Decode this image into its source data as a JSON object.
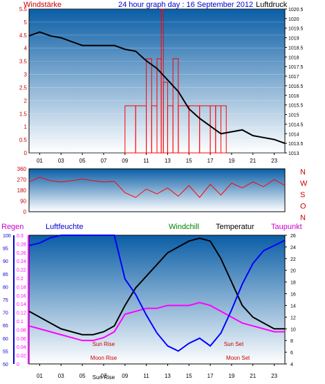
{
  "header": {
    "windstarke_label": "Windstärke",
    "title": "24 hour graph day : 16 September 2012",
    "luftdruck_label": "Luftdruck"
  },
  "lower_header": {
    "regen_label": "Regen",
    "luftfeuchte_label": "Luftfeuchte",
    "windchill_label": "Windchill",
    "temperatur_label": "Temperatur",
    "taupunkt_label": "Taupunkt"
  },
  "colors": {
    "windspeed": "#ff0000",
    "pressure": "#000000",
    "direction": "#ff0000",
    "humidity": "#0000ff",
    "temperature": "#000000",
    "dewpoint": "#ff00ff",
    "rain": "#ff00ff",
    "windchill": "#008000",
    "axis_red": "#cc0000",
    "axis_blue": "#0000cc"
  },
  "chart_data": [
    {
      "type": "line",
      "panel": "wind-pressure",
      "title": "24 hour graph day : 16 September 2012",
      "x_ticks": [
        "01",
        "03",
        "05",
        "07",
        "09",
        "11",
        "13",
        "15",
        "17",
        "19",
        "21",
        "23"
      ],
      "left_axis": {
        "label": "Windstärke",
        "ticks": [
          "0",
          "0.5",
          "1",
          "1.5",
          "2",
          "2.5",
          "3",
          "3.5",
          "4",
          "4.5",
          "5",
          "5.5"
        ],
        "range": [
          0,
          5.5
        ]
      },
      "right_axis": {
        "label": "Luftdruck",
        "ticks": [
          "1013",
          "1013.5",
          "1014",
          "1014.5",
          "1015",
          "1015.5",
          "1016",
          "1016.5",
          "1017",
          "1017.5",
          "1018",
          "1018.5",
          "1019",
          "1019.5",
          "1020",
          "1020.5"
        ],
        "range": [
          1013,
          1020.5
        ]
      },
      "series": [
        {
          "axis": "right",
          "x": [
            0,
            1,
            2,
            3,
            4,
            5,
            6,
            7,
            8,
            9,
            10,
            11,
            12,
            13,
            14,
            15,
            16,
            17,
            18,
            19,
            20,
            21,
            22,
            23,
            24
          ],
          "values": [
            1019.1,
            1019.3,
            1019.1,
            1019.0,
            1018.8,
            1018.6,
            1018.6,
            1018.6,
            1018.6,
            1018.4,
            1018.3,
            1017.8,
            1017.4,
            1016.8,
            1016.2,
            1015.3,
            1014.8,
            1014.4,
            1014.0,
            1014.1,
            1014.2,
            1013.9,
            1013.8,
            1013.7,
            1013.5
          ]
        },
        {
          "axis": "left",
          "x": [
            9.0,
            10.0,
            11.0,
            11.5,
            12.0,
            12.4,
            12.6,
            13.0,
            13.5,
            14.0,
            15.0,
            16.0,
            17.0,
            17.5,
            18.0,
            18.5
          ],
          "values": [
            1.8,
            1.8,
            3.6,
            1.8,
            3.6,
            5.5,
            2.7,
            1.8,
            3.6,
            1.8,
            1.8,
            1.8,
            1.8,
            1.8,
            1.8,
            0
          ]
        }
      ]
    },
    {
      "type": "line",
      "panel": "wind-direction",
      "left_axis": {
        "ticks": [
          "0",
          "90",
          "180",
          "270",
          "360"
        ],
        "range": [
          0,
          360
        ]
      },
      "right_axis": {
        "ticks": [
          "N",
          "W",
          "S",
          "O",
          "N"
        ]
      },
      "series": [
        {
          "x": [
            0,
            1,
            2,
            3,
            4,
            5,
            6,
            7,
            8,
            9,
            10,
            11,
            12,
            13,
            14,
            15,
            16,
            17,
            18,
            19,
            20,
            21,
            22,
            23,
            24
          ],
          "values": [
            250,
            290,
            260,
            250,
            260,
            275,
            260,
            250,
            255,
            160,
            120,
            190,
            150,
            200,
            130,
            220,
            120,
            230,
            140,
            240,
            200,
            250,
            210,
            270,
            220
          ]
        }
      ]
    },
    {
      "type": "line",
      "panel": "humidity-temperature",
      "x_ticks": [
        "01",
        "03",
        "05",
        "07",
        "09",
        "11",
        "13",
        "15",
        "17",
        "19",
        "21",
        "23"
      ],
      "annotations": [
        "Sun Rise",
        "Moon Rise",
        "Sun Set",
        "Moon Set",
        "Sun Rise"
      ],
      "annotation_x": [
        7.0,
        7.0,
        19.2,
        19.6,
        7.0
      ],
      "axes": {
        "regen": {
          "label": "Regen",
          "ticks": [
            "0",
            "0.02",
            "0.04",
            "0.06",
            "0.08",
            "0.1",
            "0.12",
            "0.14",
            "0.16",
            "0.18",
            "0.2",
            "0.22",
            "0.24",
            "0.26",
            "0.28",
            "0.3"
          ],
          "range": [
            0,
            0.3
          ]
        },
        "luftfeuchte": {
          "label": "Luftfeuchte",
          "ticks": [
            "50",
            "55",
            "60",
            "65",
            "70",
            "75",
            "80",
            "85",
            "90",
            "95",
            "100"
          ],
          "range": [
            50,
            100
          ]
        },
        "temperatur": {
          "label": "Temperatur",
          "ticks": [
            "4",
            "6",
            "8",
            "10",
            "12",
            "14",
            "16",
            "18",
            "20",
            "22",
            "24",
            "26"
          ],
          "range": [
            4,
            26
          ]
        }
      },
      "series": [
        {
          "name": "Luftfeuchte",
          "axis": "luftfeuchte",
          "x": [
            0,
            1,
            2,
            3,
            4,
            5,
            6,
            7,
            8,
            9,
            10,
            11,
            12,
            13,
            14,
            15,
            16,
            17,
            18,
            19,
            20,
            21,
            22,
            23,
            24
          ],
          "values": [
            96,
            97,
            99,
            100,
            100,
            100,
            100,
            100,
            100,
            83,
            77,
            69,
            62,
            57,
            55,
            58,
            60,
            57,
            62,
            71,
            81,
            89,
            94,
            96,
            98
          ]
        },
        {
          "name": "Temperatur",
          "axis": "temperatur",
          "x": [
            0,
            1,
            2,
            3,
            4,
            5,
            6,
            7,
            8,
            9,
            10,
            11,
            12,
            13,
            14,
            15,
            16,
            17,
            18,
            19,
            20,
            21,
            22,
            23,
            24
          ],
          "values": [
            13.0,
            12.0,
            11.0,
            10.0,
            9.5,
            9.0,
            9.0,
            9.5,
            10.5,
            14.0,
            17.0,
            19.0,
            21.0,
            23.0,
            24.0,
            25.0,
            25.5,
            25.0,
            22.0,
            18.0,
            14.0,
            12.0,
            11.0,
            10.0,
            10.0
          ]
        },
        {
          "name": "Taupunkt",
          "axis": "temperatur",
          "x": [
            0,
            1,
            2,
            3,
            4,
            5,
            6,
            7,
            8,
            9,
            10,
            11,
            12,
            13,
            14,
            15,
            16,
            17,
            18,
            19,
            20,
            21,
            22,
            23,
            24
          ],
          "values": [
            10.5,
            10.0,
            9.5,
            9.0,
            8.5,
            8.0,
            8.0,
            8.5,
            9.5,
            12.5,
            13.0,
            13.5,
            13.5,
            14.0,
            14.0,
            14.0,
            14.5,
            14.0,
            13.0,
            12.0,
            11.0,
            10.5,
            10.0,
            9.5,
            9.5
          ]
        }
      ]
    }
  ]
}
